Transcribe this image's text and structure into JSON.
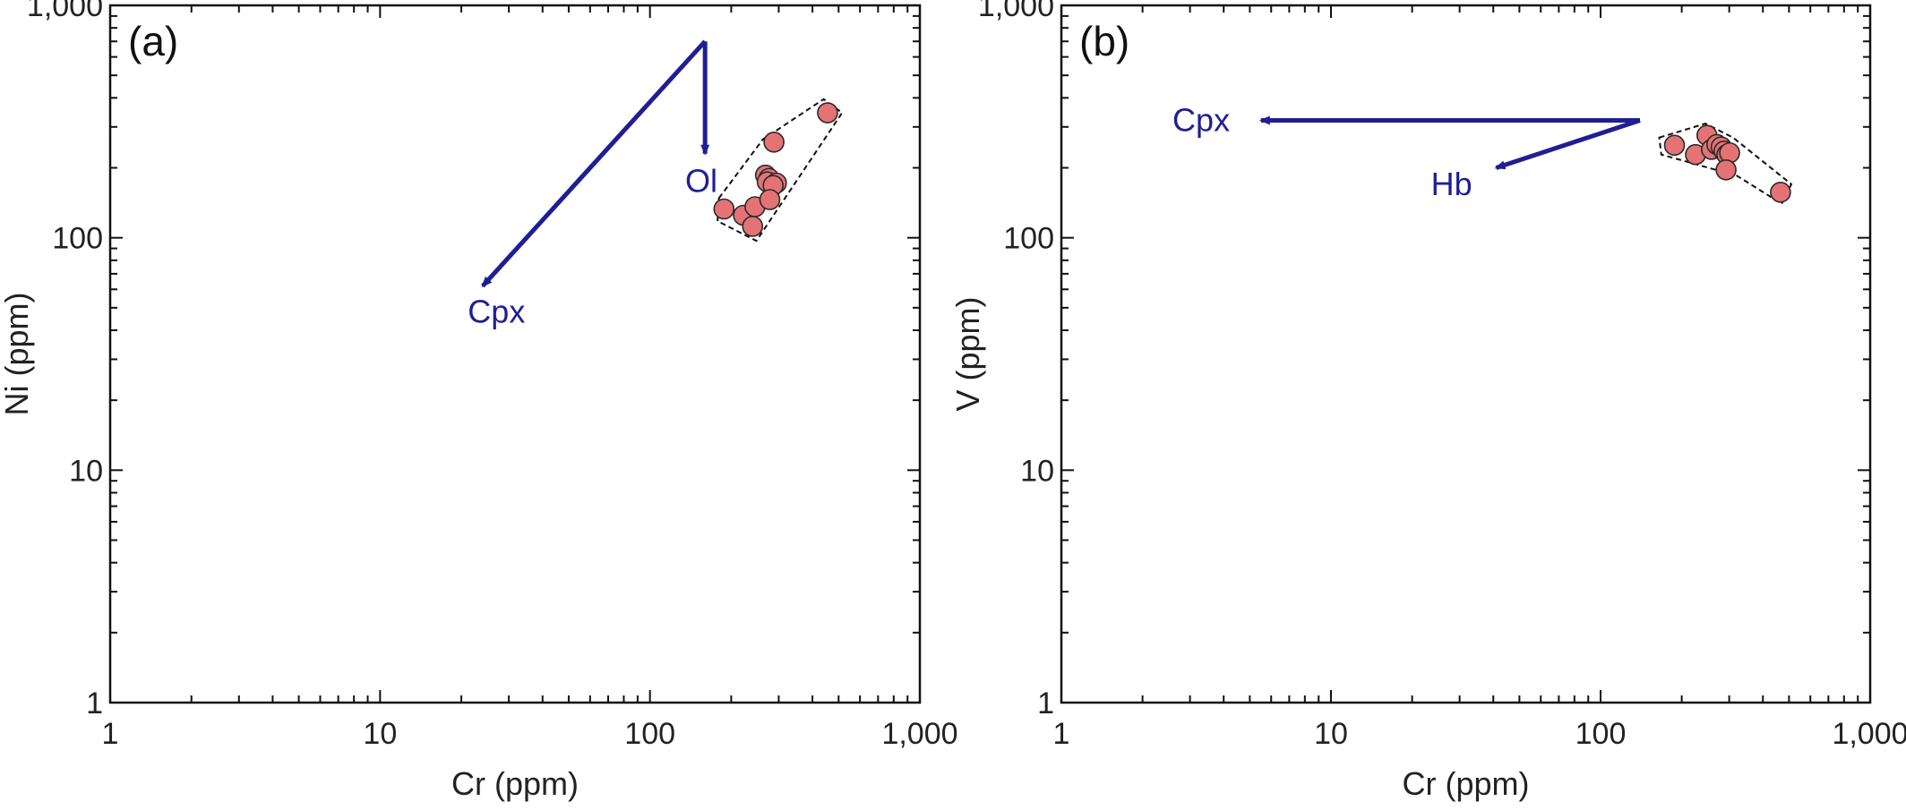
{
  "colors": {
    "point_fill": "#e57376",
    "point_stroke": "#2a2a2a",
    "vector": "#1f1f93",
    "field": "#111111"
  },
  "chart_data": [
    {
      "type": "scatter",
      "panel_label": "(a)",
      "xlabel": "Cr (ppm)",
      "ylabel": "Ni (ppm)",
      "xscale": "log",
      "yscale": "log",
      "xlim": [
        1,
        1000
      ],
      "ylim": [
        1,
        1000
      ],
      "xticks": [
        {
          "value": 1,
          "label": "1"
        },
        {
          "value": 10,
          "label": "10"
        },
        {
          "value": 100,
          "label": "100"
        },
        {
          "value": 1000,
          "label": "1,000"
        }
      ],
      "yticks": [
        {
          "value": 1,
          "label": "1"
        },
        {
          "value": 10,
          "label": "10"
        },
        {
          "value": 100,
          "label": "100"
        },
        {
          "value": 1000,
          "label": "1,000"
        }
      ],
      "grid": false,
      "points": [
        {
          "x": 455,
          "y": 345
        },
        {
          "x": 288,
          "y": 258
        },
        {
          "x": 268,
          "y": 186
        },
        {
          "x": 276,
          "y": 180
        },
        {
          "x": 272,
          "y": 174
        },
        {
          "x": 294,
          "y": 172
        },
        {
          "x": 286,
          "y": 168
        },
        {
          "x": 188,
          "y": 133
        },
        {
          "x": 222,
          "y": 125
        },
        {
          "x": 245,
          "y": 136
        },
        {
          "x": 278,
          "y": 146
        },
        {
          "x": 240,
          "y": 112
        }
      ],
      "field": [
        {
          "x": 180,
          "y": 148
        },
        {
          "x": 262,
          "y": 265
        },
        {
          "x": 440,
          "y": 395
        },
        {
          "x": 515,
          "y": 345
        },
        {
          "x": 248,
          "y": 97
        },
        {
          "x": 178,
          "y": 118
        }
      ],
      "vectors": [
        {
          "label": "Cpx",
          "from": {
            "x": 160,
            "y": 700
          },
          "to": {
            "x": 24,
            "y": 62
          },
          "label_at": {
            "x": 27,
            "y": 48
          }
        },
        {
          "label": "Ol",
          "from": {
            "x": 160,
            "y": 700
          },
          "to": {
            "x": 160,
            "y": 230
          },
          "label_at": {
            "x": 155,
            "y": 175
          }
        }
      ]
    },
    {
      "type": "scatter",
      "panel_label": "(b)",
      "xlabel": "Cr (ppm)",
      "ylabel": "V (ppm)",
      "xscale": "log",
      "yscale": "log",
      "xlim": [
        1,
        1000
      ],
      "ylim": [
        1,
        1000
      ],
      "xticks": [
        {
          "value": 1,
          "label": "1"
        },
        {
          "value": 10,
          "label": "10"
        },
        {
          "value": 100,
          "label": "100"
        },
        {
          "value": 1000,
          "label": "1,000"
        }
      ],
      "yticks": [
        {
          "value": 1,
          "label": "1"
        },
        {
          "value": 10,
          "label": "10"
        },
        {
          "value": 100,
          "label": "100"
        },
        {
          "value": 1000,
          "label": "1,000"
        }
      ],
      "grid": false,
      "points": [
        {
          "x": 188,
          "y": 250
        },
        {
          "x": 225,
          "y": 228
        },
        {
          "x": 248,
          "y": 276
        },
        {
          "x": 258,
          "y": 240
        },
        {
          "x": 270,
          "y": 252
        },
        {
          "x": 280,
          "y": 246
        },
        {
          "x": 287,
          "y": 236
        },
        {
          "x": 294,
          "y": 228
        },
        {
          "x": 301,
          "y": 232
        },
        {
          "x": 292,
          "y": 196
        },
        {
          "x": 465,
          "y": 157
        }
      ],
      "field": [
        {
          "x": 165,
          "y": 270
        },
        {
          "x": 245,
          "y": 310
        },
        {
          "x": 310,
          "y": 270
        },
        {
          "x": 510,
          "y": 170
        },
        {
          "x": 470,
          "y": 140
        },
        {
          "x": 320,
          "y": 185
        },
        {
          "x": 168,
          "y": 228
        }
      ],
      "vectors": [
        {
          "label": "Cpx",
          "from": {
            "x": 140,
            "y": 320
          },
          "to": {
            "x": 5.5,
            "y": 320
          },
          "label_at": {
            "x": 3.3,
            "y": 320
          }
        },
        {
          "label": "Hb",
          "from": {
            "x": 140,
            "y": 320
          },
          "to": {
            "x": 41,
            "y": 200
          },
          "label_at": {
            "x": 28,
            "y": 170
          }
        }
      ]
    }
  ]
}
